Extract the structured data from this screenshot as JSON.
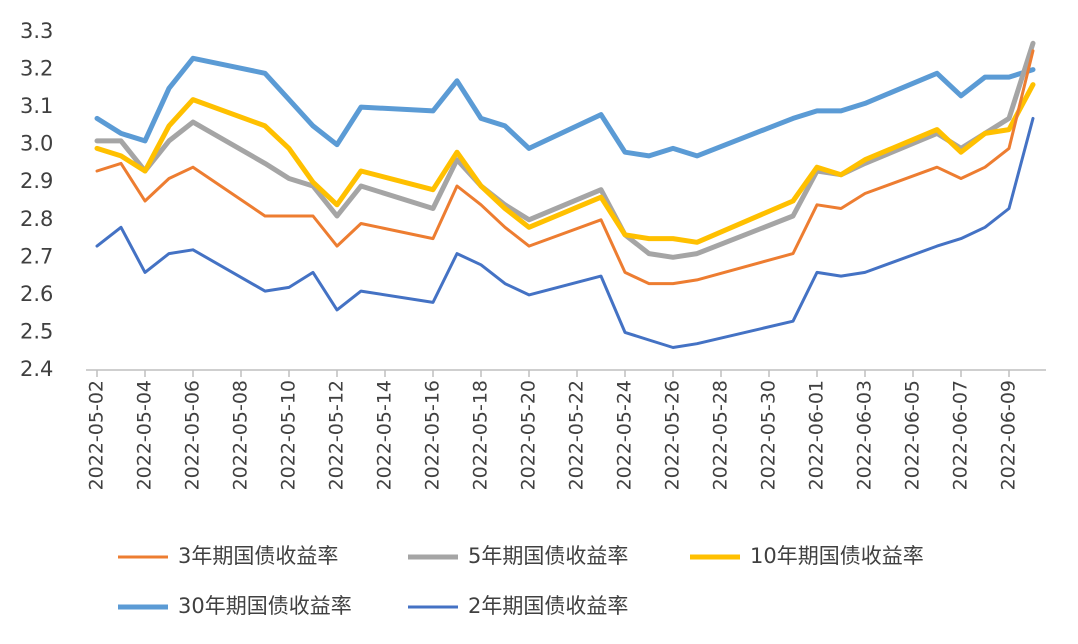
{
  "chart_data": {
    "type": "line",
    "x": [
      "2022-05-02",
      "2022-05-03",
      "2022-05-04",
      "2022-05-05",
      "2022-05-06",
      "2022-05-09",
      "2022-05-10",
      "2022-05-11",
      "2022-05-12",
      "2022-05-13",
      "2022-05-16",
      "2022-05-17",
      "2022-05-18",
      "2022-05-19",
      "2022-05-20",
      "2022-05-23",
      "2022-05-24",
      "2022-05-25",
      "2022-05-26",
      "2022-05-27",
      "2022-05-31",
      "2022-06-01",
      "2022-06-02",
      "2022-06-03",
      "2022-06-06",
      "2022-06-07",
      "2022-06-08",
      "2022-06-09",
      "2022-06-10"
    ],
    "series": [
      {
        "name": "3年期国债收益率",
        "color": "#ED7D31",
        "values": [
          2.93,
          2.95,
          2.85,
          2.91,
          2.94,
          2.81,
          2.81,
          2.81,
          2.73,
          2.79,
          2.75,
          2.89,
          2.84,
          2.78,
          2.73,
          2.8,
          2.66,
          2.63,
          2.63,
          2.64,
          2.71,
          2.84,
          2.83,
          2.87,
          2.94,
          2.91,
          2.94,
          2.99,
          3.25
        ]
      },
      {
        "name": "5年期国债收益率",
        "color": "#A5A5A5",
        "values": [
          3.01,
          3.01,
          2.93,
          3.01,
          3.06,
          2.95,
          2.91,
          2.89,
          2.81,
          2.89,
          2.83,
          2.96,
          2.89,
          2.84,
          2.8,
          2.88,
          2.76,
          2.71,
          2.7,
          2.71,
          2.81,
          2.93,
          2.92,
          2.95,
          3.03,
          2.99,
          3.03,
          3.07,
          3.27
        ]
      },
      {
        "name": "10年期国债收益率",
        "color": "#FFC000",
        "values": [
          2.99,
          2.97,
          2.93,
          3.05,
          3.12,
          3.05,
          2.99,
          2.9,
          2.84,
          2.93,
          2.88,
          2.98,
          2.89,
          2.83,
          2.78,
          2.86,
          2.76,
          2.75,
          2.75,
          2.74,
          2.85,
          2.94,
          2.92,
          2.96,
          3.04,
          2.98,
          3.03,
          3.04,
          3.16
        ]
      },
      {
        "name": "30年期国债收益率",
        "color": "#5B9BD5",
        "values": [
          3.07,
          3.03,
          3.01,
          3.15,
          3.23,
          3.19,
          3.12,
          3.05,
          3.0,
          3.1,
          3.09,
          3.17,
          3.07,
          3.05,
          2.99,
          3.08,
          2.98,
          2.97,
          2.99,
          2.97,
          3.07,
          3.09,
          3.09,
          3.11,
          3.19,
          3.13,
          3.18,
          3.18,
          3.2
        ]
      },
      {
        "name": "2年期国债收益率",
        "color": "#4472C4",
        "values": [
          2.73,
          2.78,
          2.66,
          2.71,
          2.72,
          2.61,
          2.62,
          2.66,
          2.56,
          2.61,
          2.58,
          2.71,
          2.68,
          2.63,
          2.6,
          2.65,
          2.5,
          2.48,
          2.46,
          2.47,
          2.53,
          2.66,
          2.65,
          2.66,
          2.73,
          2.75,
          2.78,
          2.83,
          3.07
        ]
      }
    ],
    "xlim": [
      "2022-05-02",
      "2022-06-10"
    ],
    "xticks": [
      "2022-05-02",
      "2022-05-04",
      "2022-05-06",
      "2022-05-08",
      "2022-05-10",
      "2022-05-12",
      "2022-05-14",
      "2022-05-16",
      "2022-05-18",
      "2022-05-20",
      "2022-05-22",
      "2022-05-24",
      "2022-05-26",
      "2022-05-28",
      "2022-05-30",
      "2022-06-01",
      "2022-06-03",
      "2022-06-05",
      "2022-06-07",
      "2022-06-09"
    ],
    "ylim": [
      2.4,
      3.3
    ],
    "yticks": [
      2.4,
      2.5,
      2.6,
      2.7,
      2.8,
      2.9,
      {
        "value": 3,
        "label": "3.0"
      },
      3.1,
      3.2,
      3.3
    ],
    "grid": false
  }
}
